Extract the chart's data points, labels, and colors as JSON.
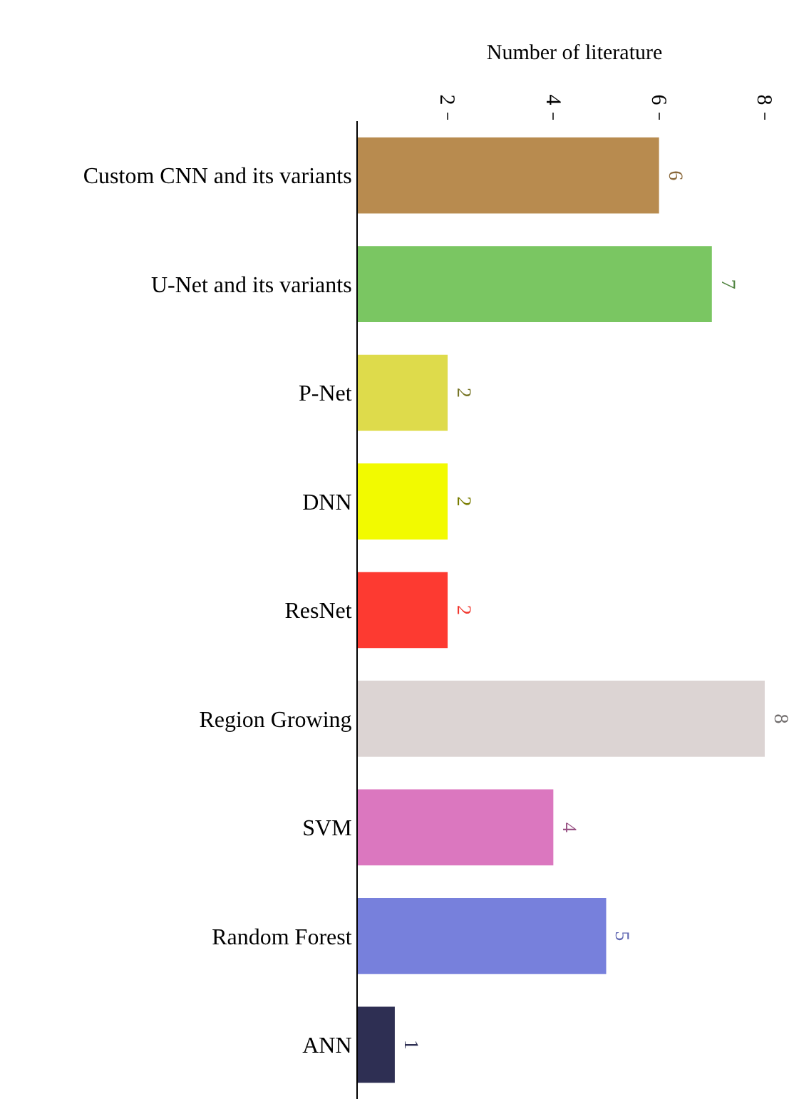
{
  "chart_data": {
    "type": "bar",
    "orientation": "horizontal",
    "xlabel": "Number of literature",
    "categories": [
      "Custom CNN and its variants",
      "U-Net and its variants",
      "P-Net",
      "DNN",
      "ResNet",
      "Region Growing",
      "SVM",
      "Random Forest",
      "ANN"
    ],
    "values": [
      6,
      7,
      2,
      2,
      2,
      8,
      4,
      5,
      1
    ],
    "colors": [
      "#b88b4f",
      "#7ac662",
      "#dedb4b",
      "#f2fa00",
      "#fd3a31",
      "#dcd4d3",
      "#db77bf",
      "#7780dc",
      "#2e2f53"
    ],
    "xlim": [
      0.3,
      8.5
    ],
    "xticks": [
      2,
      4,
      6,
      8
    ],
    "data_labels": true
  }
}
